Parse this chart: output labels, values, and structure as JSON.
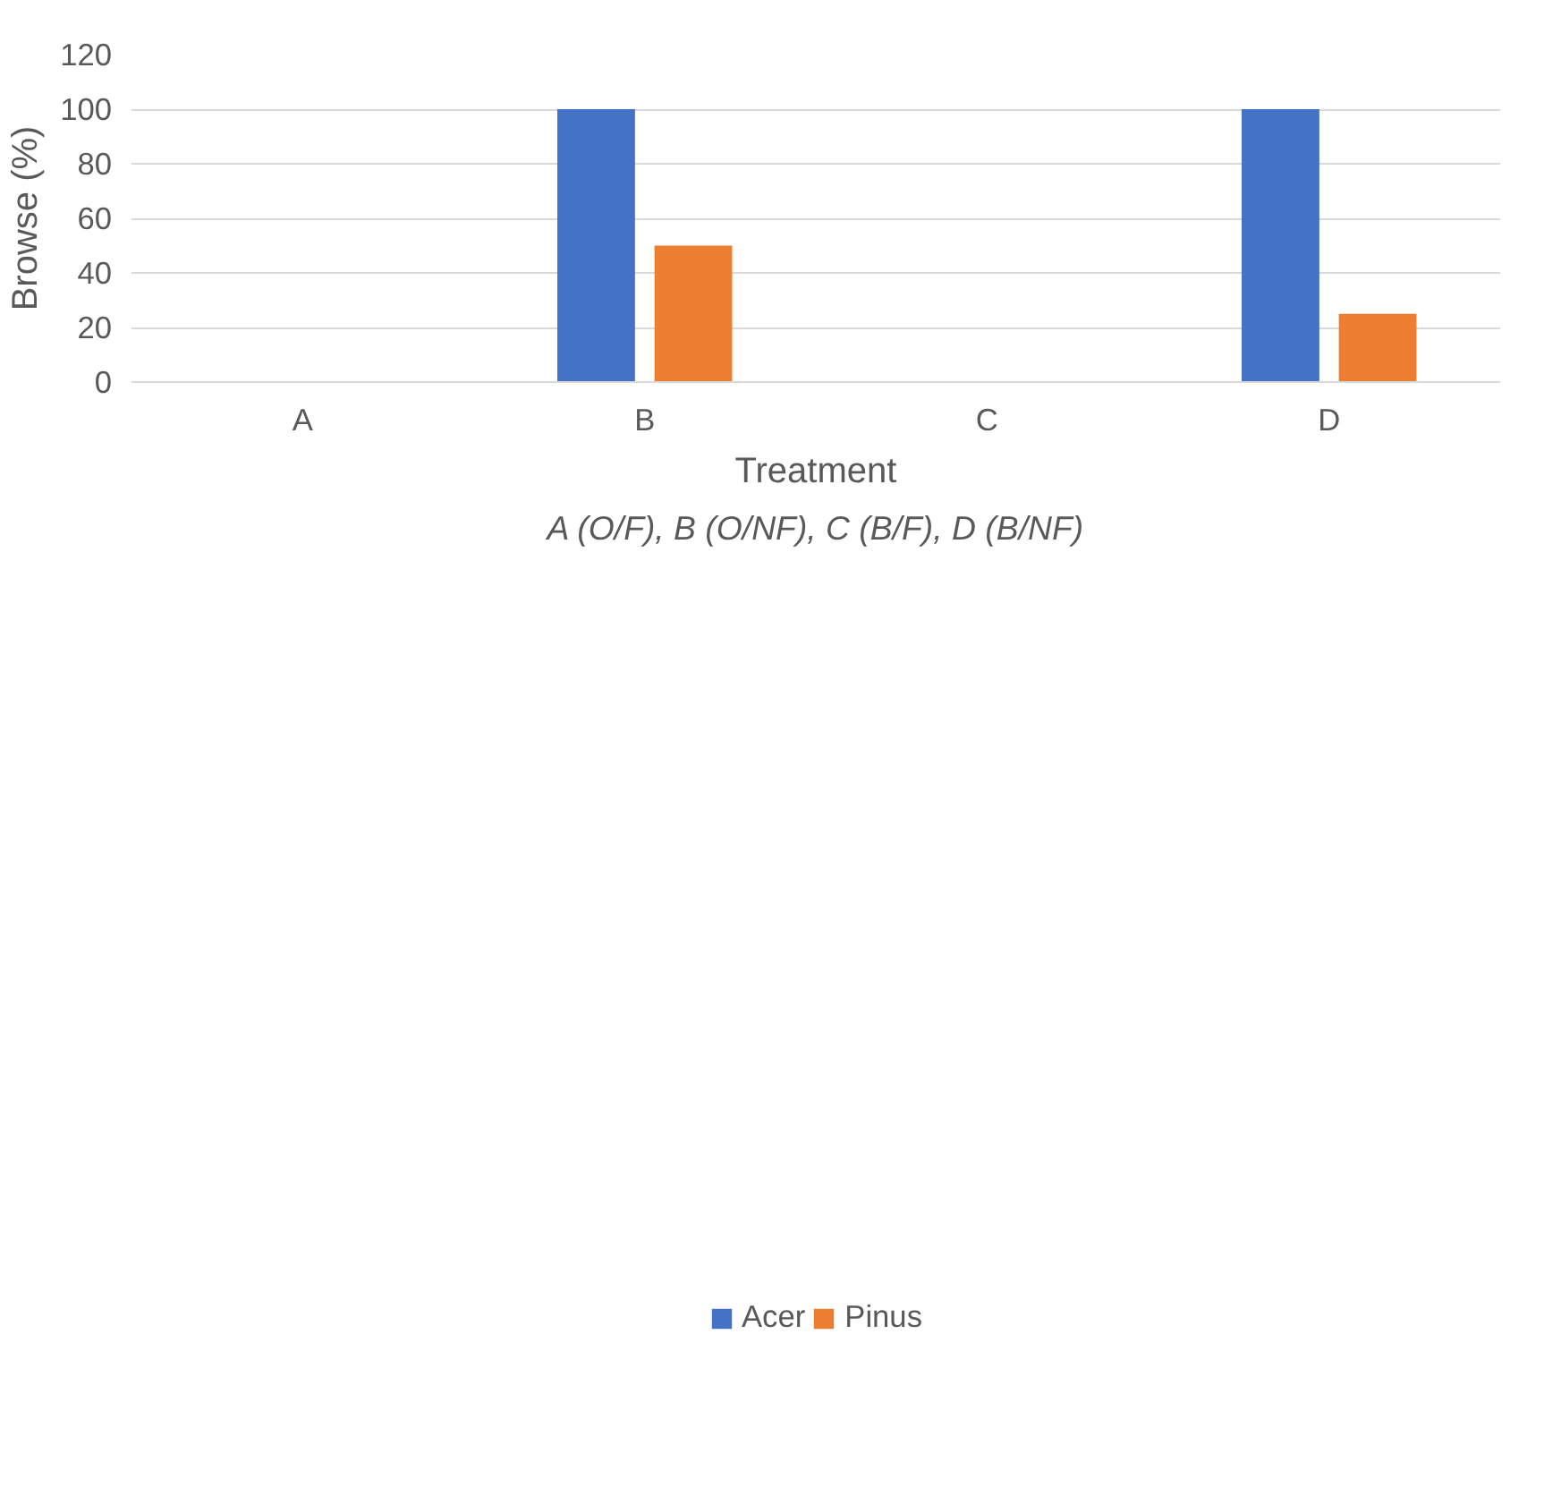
{
  "chart_data": {
    "type": "bar",
    "xlabel": "Treatment",
    "ylabel": "Browse (%)",
    "annotations": [
      "A (O/F), B (O/NF), C (B/F), D (B/NF)"
    ],
    "categories": [
      "A",
      "B",
      "C",
      "D"
    ],
    "series": [
      {
        "name": "Acer",
        "color": "#4472c4",
        "values": [
          0,
          100,
          0,
          100
        ]
      },
      {
        "name": "Pinus",
        "color": "#ed7d31",
        "values": [
          0,
          50,
          0,
          25
        ]
      }
    ],
    "ylim": [
      0,
      120
    ],
    "yticks": [
      0,
      20,
      40,
      60,
      80,
      100,
      120
    ],
    "grid": "y",
    "legend": "bottom"
  }
}
